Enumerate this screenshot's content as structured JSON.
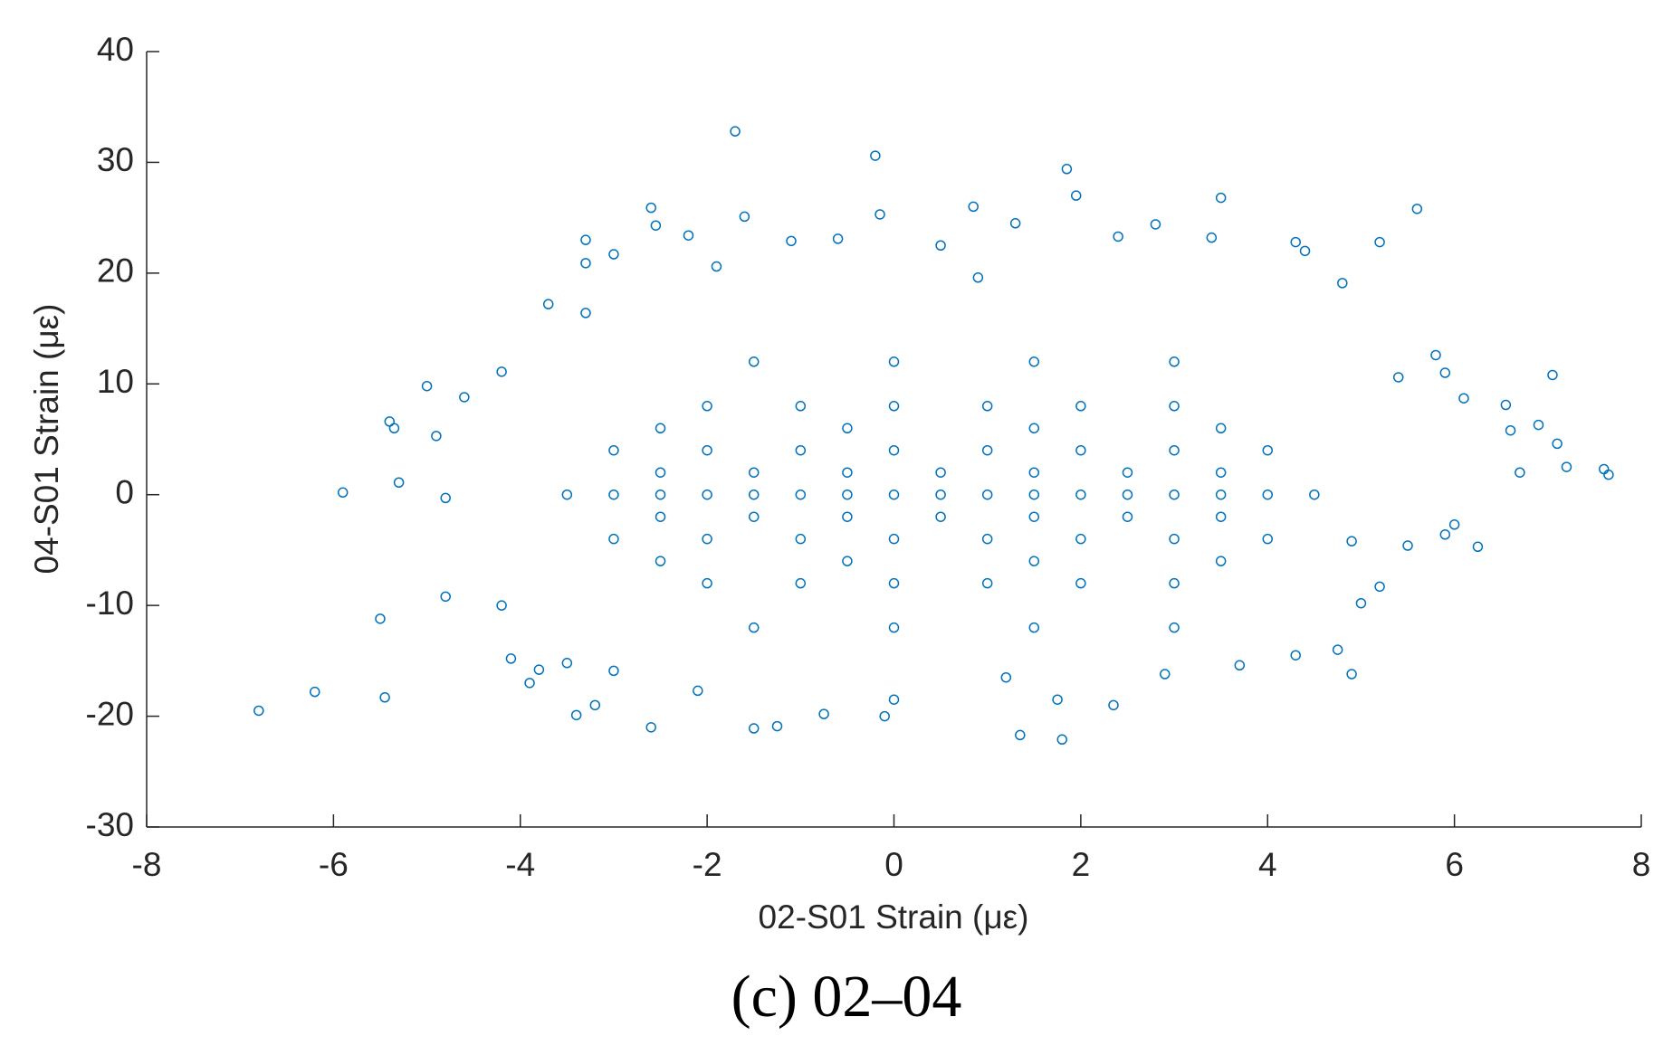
{
  "chart_data": {
    "type": "scatter",
    "caption": "(c) 02–04",
    "xlabel": "02-S01 Strain (με)",
    "ylabel": "04-S01 Strain (με)",
    "color": "#0072bd",
    "grid": false,
    "xlim": [
      -8,
      8
    ],
    "xticks": [
      -8,
      -6,
      -4,
      -2,
      0,
      2,
      4,
      6,
      8
    ],
    "ylim": [
      -30,
      40
    ],
    "yticks": [
      -30,
      -20,
      -10,
      0,
      10,
      20,
      30,
      40
    ],
    "x": [
      -6.8,
      -6.2,
      -5.9,
      -5.5,
      -5.45,
      -5.4,
      -5.35,
      -5.3,
      -5.0,
      -4.9,
      -4.8,
      -4.8,
      -4.6,
      -4.2,
      -3.7,
      -3.3,
      -3.3,
      -3.3,
      -3.2,
      -3.4,
      -2.6,
      -2.55,
      -1.6,
      -1.7,
      -1.5,
      -2.6,
      -1.25,
      -0.2,
      -0.15,
      0.85,
      1.35,
      1.8,
      1.85,
      1.95,
      3.5,
      5.6,
      5.2,
      7.05,
      7.1,
      7.2,
      7.6,
      7.65,
      6.7,
      6.9,
      6.55,
      6.6,
      6.1,
      6.25,
      6.0,
      5.9,
      4.9,
      4.75,
      4.9,
      2.35,
      1.75,
      0.0,
      -0.1,
      -0.75,
      -3.0,
      -3.9,
      -4.2,
      -2.1,
      1.2,
      2.9,
      4.3,
      3.7,
      4.4,
      4.3,
      3.4,
      2.8,
      2.4,
      1.3,
      0.5,
      -0.6,
      -1.1,
      -2.2,
      -3.0,
      -1.9,
      0.9,
      4.8,
      5.9,
      5.8,
      5.4,
      5.5,
      5.2,
      5.0,
      -3.5,
      -4.1,
      -3.8,
      -3.5,
      -3,
      -2.5,
      -2,
      -1.5,
      -1,
      -0.5,
      0,
      0.5,
      1,
      1.5,
      2,
      2.5,
      3,
      3.5,
      4,
      4.5,
      -3,
      -2,
      -1,
      0,
      1,
      2,
      3,
      4,
      -3,
      -2,
      -1,
      0,
      1,
      2,
      3,
      4,
      -2,
      -1,
      0,
      1,
      2,
      3,
      -2,
      -1,
      0,
      1,
      2,
      3,
      -2.5,
      -1.5,
      -0.5,
      0.5,
      1.5,
      2.5,
      3.5,
      -2.5,
      -1.5,
      -0.5,
      0.5,
      1.5,
      2.5,
      3.5,
      -1.5,
      0,
      1.5,
      3,
      -1.5,
      0,
      1.5,
      3,
      -2.5,
      -0.5,
      1.5,
      3.5,
      -2.5,
      -0.5,
      1.5,
      3.5
    ],
    "values": [
      -19.5,
      -17.8,
      0.2,
      -11.2,
      -18.3,
      6.6,
      6.0,
      1.1,
      9.8,
      5.3,
      -0.3,
      -9.2,
      8.8,
      11.1,
      17.2,
      23.0,
      20.9,
      16.4,
      -19.0,
      -19.9,
      25.9,
      24.3,
      25.1,
      32.8,
      -21.1,
      -21.0,
      -20.9,
      30.6,
      25.3,
      26.0,
      -21.7,
      -22.1,
      29.4,
      27.0,
      26.8,
      25.8,
      22.8,
      10.8,
      4.6,
      2.5,
      2.3,
      1.8,
      2.0,
      6.3,
      8.1,
      5.8,
      8.7,
      -4.7,
      -2.7,
      -3.6,
      -16.2,
      -14.0,
      -4.2,
      -19.0,
      -18.5,
      -18.5,
      -20.0,
      -19.8,
      -15.9,
      -17.0,
      -10.0,
      -17.7,
      -16.5,
      -16.2,
      -14.5,
      -15.4,
      22.0,
      22.8,
      23.2,
      24.4,
      23.3,
      24.5,
      22.5,
      23.1,
      22.9,
      23.4,
      21.7,
      20.6,
      19.6,
      19.1,
      11.0,
      12.6,
      10.6,
      -4.6,
      -8.3,
      -9.8,
      -15.2,
      -14.8,
      -15.8,
      0,
      0,
      0,
      0,
      0,
      0,
      0,
      0,
      0,
      0,
      0,
      0,
      0,
      0,
      0,
      0,
      0,
      4,
      4,
      4,
      4,
      4,
      4,
      4,
      4,
      -4,
      -4,
      -4,
      -4,
      -4,
      -4,
      -4,
      -4,
      8,
      8,
      8,
      8,
      8,
      8,
      -8,
      -8,
      -8,
      -8,
      -8,
      -8,
      2,
      2,
      2,
      2,
      2,
      2,
      2,
      -2,
      -2,
      -2,
      -2,
      -2,
      -2,
      -2,
      12,
      12,
      12,
      12,
      -12,
      -12,
      -12,
      -12,
      6,
      6,
      6,
      6,
      -6,
      -6,
      -6,
      -6
    ]
  }
}
